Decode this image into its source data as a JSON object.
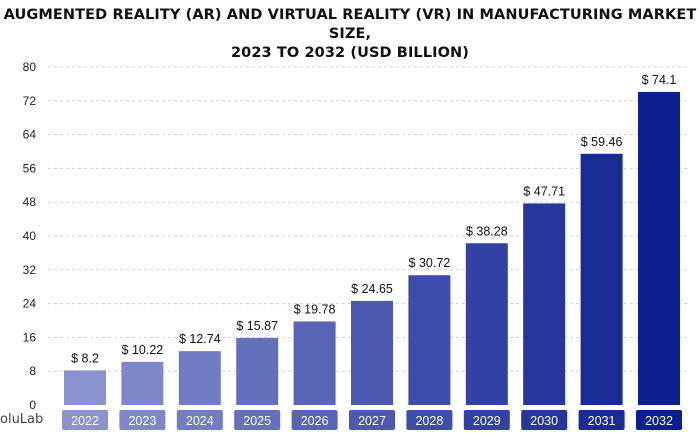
{
  "chart_data": {
    "type": "bar",
    "title": "AUGMENTED REALITY (AR) AND VIRTUAL REALITY (VR) IN MANUFACTURING MARKET SIZE, 2023 TO 2032 (USD BILLION)",
    "title_lines": [
      "AUGMENTED REALITY (AR) AND VIRTUAL REALITY (VR) IN MANUFACTURING MARKET SIZE,",
      "2023 TO 2032 (USD BILLION)"
    ],
    "categories": [
      "2022",
      "2023",
      "2024",
      "2025",
      "2026",
      "2027",
      "2028",
      "2029",
      "2030",
      "2031",
      "2032"
    ],
    "values": [
      8.2,
      10.22,
      12.74,
      15.87,
      19.78,
      24.65,
      30.72,
      38.28,
      47.71,
      59.46,
      74.1
    ],
    "value_labels": [
      "$ 8.2",
      "$ 10.22",
      "$ 12.74",
      "$ 15.87",
      "$ 19.78",
      "$ 24.65",
      "$ 30.72",
      "$ 38.28",
      "$ 47.71",
      "$ 59.46",
      "$ 74.1"
    ],
    "yticks": [
      "0",
      "8",
      "16",
      "24",
      "32",
      "40",
      "48",
      "56",
      "64",
      "72",
      "80"
    ],
    "ylim": [
      0,
      80
    ],
    "grid": "horizontal-dashed",
    "colors": {
      "bar_start": "#8a93cf",
      "bar_end": "#0c1f91",
      "grid": "#cfcfcf"
    }
  },
  "brand": {
    "text": "oluLab"
  }
}
